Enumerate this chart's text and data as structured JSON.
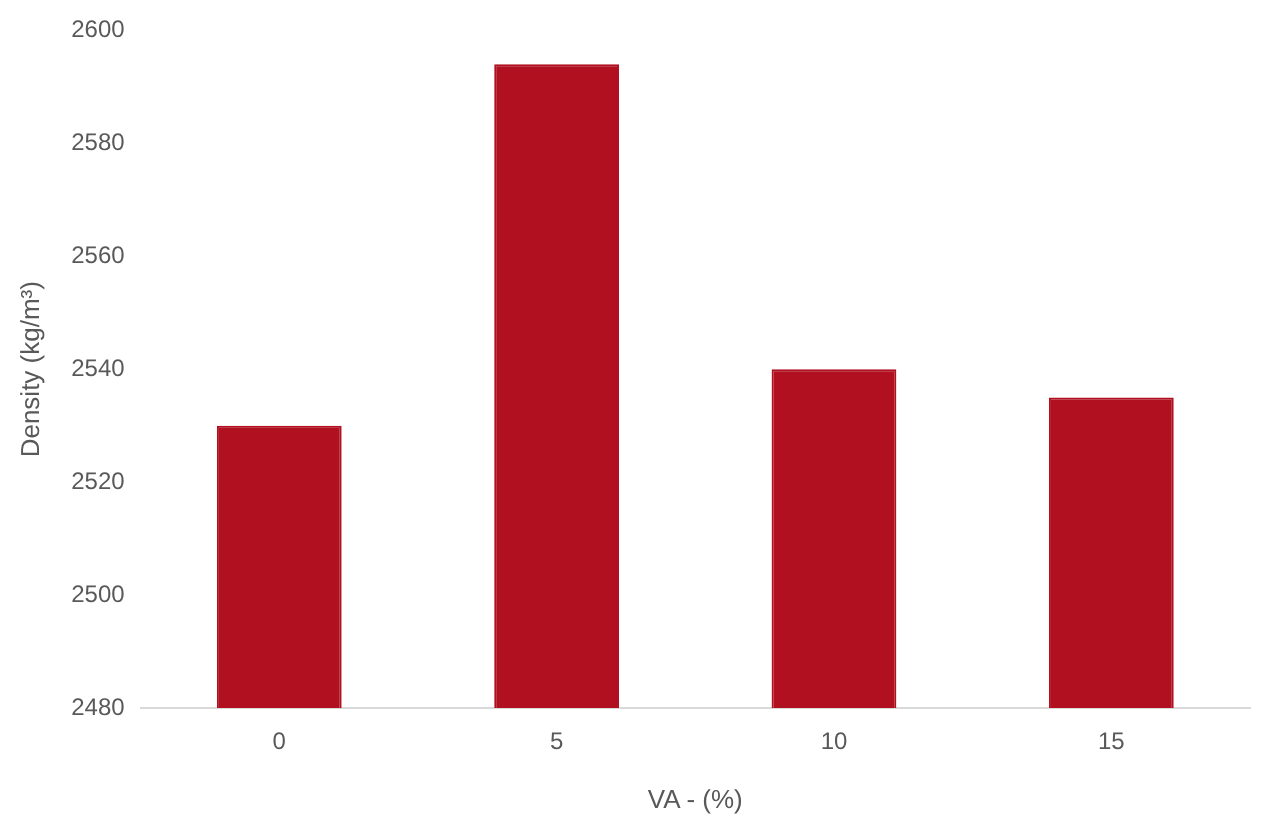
{
  "chart_data": {
    "type": "bar",
    "xlabel": "VA - (%)",
    "ylabel": "Density (kg/m³)",
    "categories": [
      "0",
      "5",
      "10",
      "15"
    ],
    "values": [
      2530,
      2594,
      2540,
      2535
    ],
    "color": "#b01020",
    "ylim": [
      2480,
      2600
    ],
    "yticks": [
      2480,
      2500,
      2520,
      2540,
      2560,
      2580,
      2600
    ],
    "grid": false,
    "legend": false
  }
}
